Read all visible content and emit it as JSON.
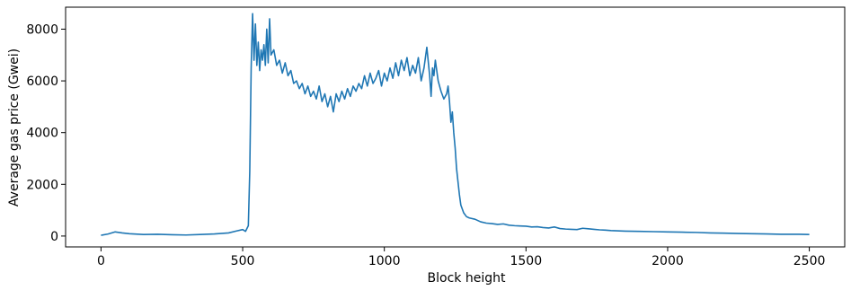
{
  "chart_data": {
    "type": "line",
    "title": "",
    "xlabel": "Block height",
    "ylabel": "Average gas price (Gwei)",
    "xlim": [
      -125,
      2625
    ],
    "ylim": [
      -420,
      8850
    ],
    "xticks": [
      0,
      500,
      1000,
      1500,
      2000,
      2500
    ],
    "xtick_labels": [
      "0",
      "500",
      "1000",
      "1500",
      "2000",
      "2500"
    ],
    "yticks": [
      0,
      2000,
      4000,
      6000,
      8000
    ],
    "ytick_labels": [
      "0",
      "2000",
      "4000",
      "6000",
      "8000"
    ],
    "grid": false,
    "line_color": "#1f77b4",
    "series": [
      {
        "x": [
          0,
          25,
          50,
          75,
          100,
          150,
          200,
          250,
          300,
          350,
          400,
          450,
          480,
          500,
          510,
          520,
          525,
          530,
          535,
          540,
          545,
          550,
          555,
          560,
          565,
          570,
          575,
          580,
          585,
          590,
          595,
          600,
          610,
          620,
          630,
          640,
          650,
          660,
          670,
          680,
          690,
          700,
          710,
          720,
          730,
          740,
          750,
          760,
          770,
          780,
          790,
          800,
          810,
          820,
          830,
          840,
          850,
          860,
          870,
          880,
          890,
          900,
          910,
          920,
          930,
          940,
          950,
          960,
          970,
          980,
          990,
          1000,
          1010,
          1020,
          1030,
          1040,
          1050,
          1060,
          1070,
          1080,
          1090,
          1100,
          1110,
          1120,
          1130,
          1140,
          1150,
          1160,
          1165,
          1170,
          1175,
          1180,
          1190,
          1200,
          1210,
          1220,
          1225,
          1230,
          1235,
          1240,
          1245,
          1250,
          1255,
          1260,
          1265,
          1270,
          1280,
          1290,
          1300,
          1320,
          1340,
          1360,
          1380,
          1400,
          1420,
          1440,
          1460,
          1480,
          1500,
          1520,
          1540,
          1560,
          1580,
          1600,
          1620,
          1640,
          1660,
          1680,
          1700,
          1720,
          1740,
          1760,
          1780,
          1800,
          1850,
          1900,
          1950,
          2000,
          2050,
          2100,
          2150,
          2200,
          2250,
          2300,
          2350,
          2400,
          2450,
          2500
        ],
        "y": [
          30,
          80,
          160,
          120,
          90,
          60,
          70,
          50,
          40,
          60,
          80,
          120,
          200,
          250,
          180,
          400,
          2500,
          6500,
          8600,
          6800,
          8200,
          6600,
          7500,
          6400,
          7200,
          6800,
          7400,
          6600,
          8000,
          6700,
          8400,
          7000,
          7200,
          6600,
          6800,
          6300,
          6700,
          6200,
          6400,
          5900,
          6000,
          5700,
          5900,
          5500,
          5800,
          5400,
          5600,
          5300,
          5800,
          5200,
          5500,
          5000,
          5400,
          4800,
          5500,
          5200,
          5600,
          5300,
          5700,
          5400,
          5800,
          5600,
          5900,
          5700,
          6200,
          5800,
          6300,
          5900,
          6100,
          6400,
          5800,
          6300,
          6000,
          6500,
          6100,
          6700,
          6200,
          6800,
          6400,
          6900,
          6200,
          6600,
          6300,
          6900,
          6000,
          6500,
          7300,
          6200,
          5400,
          6500,
          6200,
          6800,
          6000,
          5600,
          5300,
          5500,
          5800,
          5200,
          4400,
          4800,
          4000,
          3400,
          2600,
          2100,
          1600,
          1200,
          900,
          750,
          700,
          650,
          550,
          500,
          480,
          450,
          470,
          420,
          400,
          390,
          380,
          350,
          360,
          330,
          310,
          350,
          290,
          270,
          260,
          250,
          300,
          280,
          260,
          240,
          230,
          210,
          190,
          180,
          170,
          160,
          150,
          140,
          120,
          110,
          100,
          90,
          80,
          70,
          70,
          60
        ]
      }
    ]
  }
}
